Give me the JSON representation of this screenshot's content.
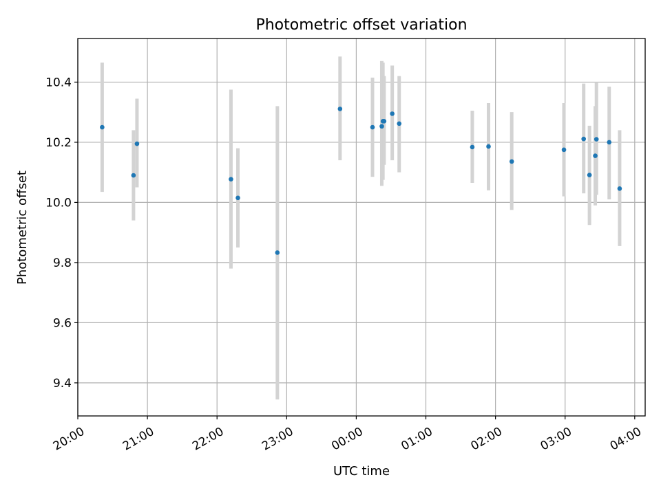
{
  "chart_data": {
    "type": "scatter",
    "title": "Photometric offset variation",
    "xlabel": "UTC time",
    "ylabel": "Photometric offset",
    "x_unit": "UTC time of day, spanning midnight",
    "x_range": [
      "20:00",
      "04:09"
    ],
    "ylim": [
      9.29,
      10.545
    ],
    "grid": true,
    "x_ticks": [
      "20:00",
      "21:00",
      "22:00",
      "23:00",
      "00:00",
      "01:00",
      "02:00",
      "03:00",
      "04:00"
    ],
    "y_ticks": [
      9.4,
      9.6,
      9.8,
      10.0,
      10.2,
      10.4
    ],
    "y_tick_labels": [
      "9.4",
      "9.6",
      "9.8",
      "10.0",
      "10.2",
      "10.4"
    ],
    "point_color": "#1f77b4",
    "errorbar_color": "#d3d3d3",
    "points": [
      {
        "time": "20:21",
        "y": 10.25,
        "lo": 10.035,
        "hi": 10.465
      },
      {
        "time": "20:48",
        "y": 10.09,
        "lo": 9.94,
        "hi": 10.24
      },
      {
        "time": "20:51",
        "y": 10.195,
        "lo": 10.05,
        "hi": 10.345
      },
      {
        "time": "22:12",
        "y": 10.077,
        "lo": 9.78,
        "hi": 10.375
      },
      {
        "time": "22:18",
        "y": 10.015,
        "lo": 9.85,
        "hi": 10.18
      },
      {
        "time": "22:52",
        "y": 9.833,
        "lo": 9.345,
        "hi": 10.32
      },
      {
        "time": "23:46",
        "y": 10.311,
        "lo": 10.14,
        "hi": 10.485
      },
      {
        "time": "00:14",
        "y": 10.25,
        "lo": 10.085,
        "hi": 10.415
      },
      {
        "time": "00:22",
        "y": 10.253,
        "lo": 10.055,
        "hi": 10.47
      },
      {
        "time": "00:23",
        "y": 10.27,
        "lo": 10.075,
        "hi": 10.465
      },
      {
        "time": "00:24",
        "y": 10.27,
        "lo": 10.125,
        "hi": 10.42
      },
      {
        "time": "00:31",
        "y": 10.295,
        "lo": 10.14,
        "hi": 10.455
      },
      {
        "time": "00:37",
        "y": 10.262,
        "lo": 10.1,
        "hi": 10.42
      },
      {
        "time": "01:40",
        "y": 10.184,
        "lo": 10.065,
        "hi": 10.305
      },
      {
        "time": "01:54",
        "y": 10.186,
        "lo": 10.04,
        "hi": 10.33
      },
      {
        "time": "02:14",
        "y": 10.136,
        "lo": 9.975,
        "hi": 10.3
      },
      {
        "time": "02:59",
        "y": 10.175,
        "lo": 10.02,
        "hi": 10.33
      },
      {
        "time": "03:16",
        "y": 10.211,
        "lo": 10.03,
        "hi": 10.395
      },
      {
        "time": "03:21",
        "y": 10.091,
        "lo": 9.925,
        "hi": 10.255
      },
      {
        "time": "03:26",
        "y": 10.155,
        "lo": 9.99,
        "hi": 10.32
      },
      {
        "time": "03:27",
        "y": 10.21,
        "lo": 10.025,
        "hi": 10.4
      },
      {
        "time": "03:38",
        "y": 10.2,
        "lo": 10.01,
        "hi": 10.385
      },
      {
        "time": "03:47",
        "y": 10.046,
        "lo": 9.855,
        "hi": 10.24
      }
    ]
  }
}
